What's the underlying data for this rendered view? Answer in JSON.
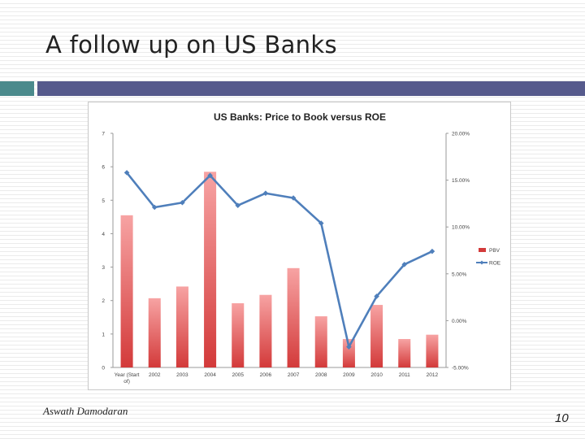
{
  "slide": {
    "title": "A follow up on US Banks",
    "author": "Aswath Damodaran",
    "page_number": "10"
  },
  "colors": {
    "accent_teal": "#4b8a8c",
    "accent_navy": "#565a8c",
    "bar_top": "#f7a3a3",
    "bar_bottom": "#d33a3a",
    "line": "#4f7fbb"
  },
  "chart_data": {
    "type": "bar",
    "title": "US Banks: Price to Book versus ROE",
    "categories": [
      "Year (Start of)",
      "2002",
      "2003",
      "2004",
      "2005",
      "2006",
      "2007",
      "2008",
      "2009",
      "2010",
      "2011",
      "2012"
    ],
    "series": [
      {
        "name": "PBV",
        "type": "bar",
        "axis": "left",
        "values": [
          4.55,
          2.07,
          2.42,
          5.85,
          1.92,
          2.17,
          2.97,
          1.53,
          0.85,
          1.87,
          0.85,
          0.98
        ]
      },
      {
        "name": "ROE",
        "type": "line",
        "axis": "right",
        "values": [
          15.8,
          12.1,
          12.6,
          15.5,
          12.3,
          13.6,
          13.1,
          10.4,
          -2.8,
          2.6,
          6.0,
          7.4
        ]
      }
    ],
    "y_left": {
      "ticks": [
        "0",
        "1",
        "2",
        "3",
        "4",
        "5",
        "6",
        "7"
      ],
      "ylim": [
        0,
        7
      ]
    },
    "y_right": {
      "ticks": [
        "-5.00%",
        "0.00%",
        "5.00%",
        "10.00%",
        "15.00%",
        "20.00%"
      ],
      "ylim": [
        -5,
        20
      ]
    },
    "grid": false,
    "legend_position": "right"
  }
}
